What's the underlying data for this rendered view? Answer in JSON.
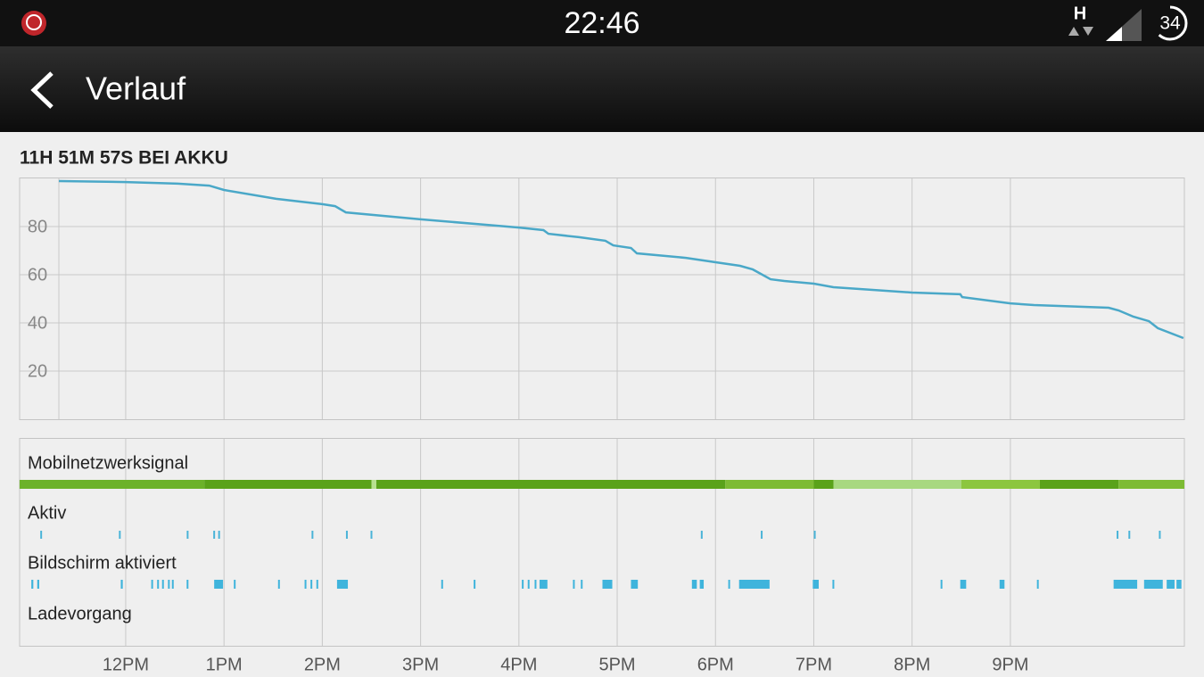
{
  "status_bar": {
    "time": "22:46",
    "network": "H",
    "battery": "34"
  },
  "app_bar": {
    "title": "Verlauf"
  },
  "chart_data": {
    "type": "line",
    "title": "11H 51M 57S BEI AKKU",
    "x": [
      11.32,
      12.0,
      12.53,
      12.85,
      13.0,
      13.53,
      14.0,
      14.13,
      14.24,
      15.0,
      16.0,
      16.25,
      16.3,
      16.61,
      16.88,
      16.96,
      17.14,
      17.2,
      17.7,
      18.0,
      18.25,
      18.38,
      18.56,
      18.7,
      19.0,
      19.2,
      20.0,
      20.49,
      20.51,
      21.0,
      21.24,
      22.0,
      22.1,
      22.25,
      22.41,
      22.5,
      22.76
    ],
    "values": [
      98.9,
      98.5,
      97.8,
      97.0,
      95.2,
      91.5,
      89.3,
      88.5,
      85.9,
      83.0,
      79.6,
      78.5,
      77.0,
      75.6,
      74.1,
      72.2,
      71.1,
      68.9,
      67.0,
      65.2,
      63.7,
      62.2,
      58.1,
      57.4,
      56.3,
      54.8,
      52.6,
      51.9,
      50.7,
      48.1,
      47.4,
      46.3,
      45.2,
      42.6,
      40.7,
      37.8,
      33.7
    ],
    "color": "#4aa8c8",
    "xlim": [
      11.32,
      22.77
    ],
    "xticks": [
      {
        "value": 12,
        "label": "12PM"
      },
      {
        "value": 13,
        "label": "1PM"
      },
      {
        "value": 14,
        "label": "2PM"
      },
      {
        "value": 15,
        "label": "3PM"
      },
      {
        "value": 16,
        "label": "4PM"
      },
      {
        "value": 17,
        "label": "5PM"
      },
      {
        "value": 18,
        "label": "6PM"
      },
      {
        "value": 19,
        "label": "7PM"
      },
      {
        "value": 20,
        "label": "8PM"
      },
      {
        "value": 21,
        "label": "9PM"
      }
    ],
    "ylim": [
      0,
      100
    ],
    "yticks": [
      20,
      40,
      60,
      80
    ],
    "grid": true,
    "lanes": [
      {
        "label": "Mobilnetzwerksignal",
        "segments": [
          [
            10.92,
            12.8,
            "#6cb22a"
          ],
          [
            12.8,
            14.5,
            "#5aa21a"
          ],
          [
            14.5,
            14.55,
            "#b8e090"
          ],
          [
            14.55,
            18.1,
            "#5aa21a"
          ],
          [
            18.1,
            19.0,
            "#7dbb34"
          ],
          [
            19.0,
            19.2,
            "#5aa21a"
          ],
          [
            19.2,
            20.5,
            "#a8d880"
          ],
          [
            20.5,
            21.3,
            "#8cc63f"
          ],
          [
            21.3,
            22.1,
            "#5aa21a"
          ],
          [
            22.1,
            22.77,
            "#7dbb34"
          ]
        ]
      },
      {
        "label": "Aktiv",
        "color": "#4ab4d8",
        "events": [
          11.14,
          11.94,
          12.63,
          12.9,
          12.95,
          13.9,
          14.25,
          14.5,
          17.86,
          18.47,
          19.01,
          22.09,
          22.21,
          22.52
        ]
      },
      {
        "label": "Bildschirm aktiviert",
        "color": "#3fb4dc",
        "segments": [
          [
            11.04,
            11.06
          ],
          [
            11.1,
            11.12
          ],
          [
            11.95,
            11.97
          ],
          [
            12.26,
            12.27
          ],
          [
            12.32,
            12.33
          ],
          [
            12.37,
            12.38
          ],
          [
            12.43,
            12.44
          ],
          [
            12.47,
            12.48
          ],
          [
            12.62,
            12.63
          ],
          [
            12.9,
            12.99
          ],
          [
            13.1,
            13.11
          ],
          [
            13.55,
            13.56
          ],
          [
            13.82,
            13.83
          ],
          [
            13.88,
            13.89
          ],
          [
            13.94,
            13.95
          ],
          [
            14.15,
            14.26
          ],
          [
            15.21,
            15.22
          ],
          [
            15.54,
            15.55
          ],
          [
            16.03,
            16.04
          ],
          [
            16.09,
            16.1
          ],
          [
            16.16,
            16.17
          ],
          [
            16.21,
            16.29
          ],
          [
            16.55,
            16.56
          ],
          [
            16.63,
            16.64
          ],
          [
            16.85,
            16.95
          ],
          [
            17.14,
            17.21
          ],
          [
            17.76,
            17.81
          ],
          [
            17.84,
            17.88
          ],
          [
            18.13,
            18.14
          ],
          [
            18.24,
            18.55
          ],
          [
            18.99,
            19.05
          ],
          [
            19.19,
            19.2
          ],
          [
            20.29,
            20.3
          ],
          [
            20.49,
            20.55
          ],
          [
            20.89,
            20.94
          ],
          [
            21.27,
            21.28
          ],
          [
            22.05,
            22.29
          ],
          [
            22.36,
            22.55
          ],
          [
            22.59,
            22.67
          ],
          [
            22.69,
            22.74
          ]
        ]
      },
      {
        "label": "Ladevorgang"
      }
    ]
  }
}
